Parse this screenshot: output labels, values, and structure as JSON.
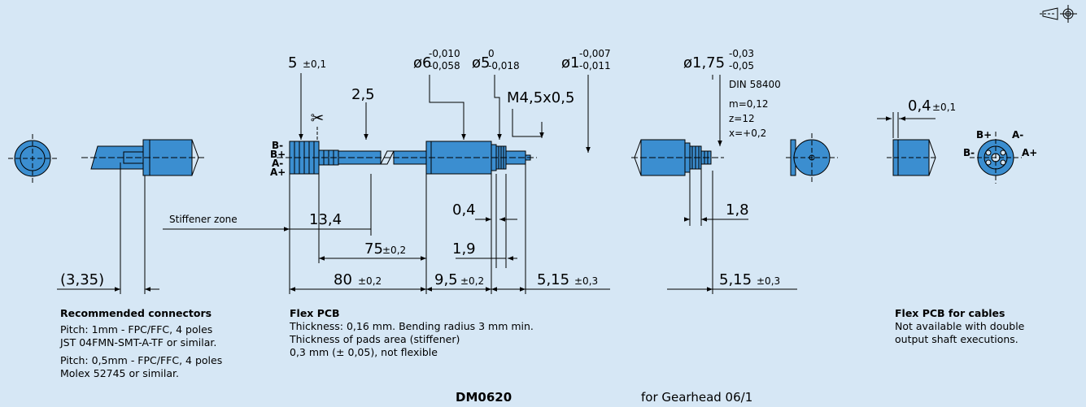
{
  "dimensions": {
    "d5": "5",
    "d5_tol": "±0,1",
    "d2_5": "2,5",
    "d6": "ø6",
    "d6_tol_up": "-0,010",
    "d6_tol_lo": "-0,058",
    "d5b": "ø5",
    "d5b_tol_up": "0",
    "d5b_tol_lo": "-0,018",
    "d1": "ø1",
    "d1_tol_up": "-0,007",
    "d1_tol_lo": "-0,011",
    "m45": "M4,5x0,5",
    "d175": "ø1,75",
    "d175_tol_up": "-0,03",
    "d175_tol_lo": "-0,05",
    "din1": "DIN 58400",
    "din2": "m=0,12",
    "din3": "z=12",
    "din4": "x=+0,2",
    "d04a": "0,4",
    "d04a_tol": "±0,1",
    "d04b": "0,4",
    "d13_4": "13,4",
    "d75": "75",
    "d75_tol": "±0,2",
    "d1_9": "1,9",
    "d80": "80",
    "d80_tol": "±0,2",
    "d9_5": "9,5",
    "d9_5_tol": "±0,2",
    "d5_15a": "5,15",
    "d5_15a_tol": "±0,3",
    "d1_8": "1,8",
    "d5_15b": "5,15",
    "d5_15b_tol": "±0,3",
    "d3_35": "(3,35)",
    "stiffener": "Stiffener zone"
  },
  "pin_labels": {
    "left": [
      "B-",
      "B+",
      "A-",
      "A+"
    ],
    "right_bp": "B+",
    "right_am": "A-",
    "right_bm": "B-",
    "right_ap": "A+"
  },
  "notes": {
    "connectors": {
      "title": "Recommended connectors",
      "l1": "Pitch: 1mm - FPC/FFC, 4 poles",
      "l2": "JST 04FMN-SMT-A-TF or similar.",
      "l3": "Pitch: 0,5mm - FPC/FFC, 4 poles",
      "l4": "Molex 52745 or similar."
    },
    "flex": {
      "title": "Flex PCB",
      "l1": "Thickness: 0,16 mm. Bending radius 3 mm min.",
      "l2": "Thickness of pads area (stiffener)",
      "l3": "0,3 mm (± 0,05), not flexible"
    },
    "cables": {
      "title": "Flex PCB for cables",
      "l1": "Not available with double",
      "l2": "output shaft executions."
    }
  },
  "footer": {
    "code": "DM0620",
    "desc": "for Gearhead 06/1"
  },
  "colors": {
    "part": "#3b8ed0",
    "part_dark": "#2a6ea8",
    "background": "#d6e7f5",
    "line": "#000000"
  }
}
